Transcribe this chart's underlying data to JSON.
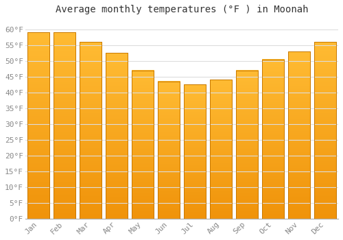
{
  "title": "Average monthly temperatures (°F ) in Moonah",
  "months": [
    "Jan",
    "Feb",
    "Mar",
    "Apr",
    "May",
    "Jun",
    "Jul",
    "Aug",
    "Sep",
    "Oct",
    "Nov",
    "Dec"
  ],
  "values": [
    59,
    59,
    56,
    52.5,
    47,
    43.5,
    42.5,
    44,
    47,
    50.5,
    53,
    56
  ],
  "bar_color_top": "#FFBB33",
  "bar_color_bottom": "#F0930A",
  "bar_edge_color": "#C87800",
  "background_color": "#FFFFFF",
  "plot_bg_color": "#FFFFFF",
  "grid_color": "#DDDDDD",
  "text_color": "#888888",
  "title_color": "#333333",
  "ylim": [
    0,
    63
  ],
  "yticks": [
    0,
    5,
    10,
    15,
    20,
    25,
    30,
    35,
    40,
    45,
    50,
    55,
    60
  ],
  "ylabel_format": "°F",
  "title_fontsize": 10,
  "tick_fontsize": 8,
  "bar_width": 0.85
}
